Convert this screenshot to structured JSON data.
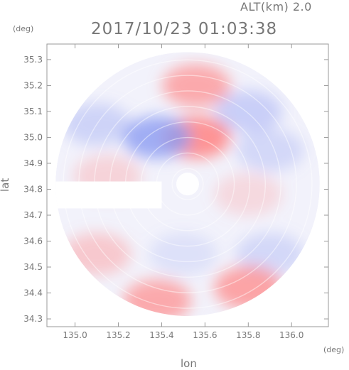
{
  "header": {
    "altitude_label": "ALT(km) 2.0",
    "timestamp": "2017/10/23 01:03:38"
  },
  "units": {
    "y_unit": "(deg)",
    "x_unit": "(deg)"
  },
  "chart_data": {
    "type": "heatmap",
    "title": "2017/10/23 01:03:38",
    "subtitle": "ALT(km) 2.0",
    "xlabel": "lon",
    "ylabel": "lat",
    "xlim": [
      134.87,
      136.17
    ],
    "ylim": [
      34.27,
      35.36
    ],
    "x_ticks": [
      "135.0",
      "135.2",
      "135.4",
      "135.6",
      "135.8",
      "136.0"
    ],
    "x_tick_values": [
      135.0,
      135.2,
      135.4,
      135.6,
      135.8,
      136.0
    ],
    "y_ticks": [
      "35.3",
      "35.2",
      "35.1",
      "35.0",
      "34.9",
      "34.8",
      "34.7",
      "34.6",
      "34.5",
      "34.4",
      "34.3"
    ],
    "y_tick_values": [
      35.3,
      35.2,
      35.1,
      35.0,
      34.9,
      34.8,
      34.7,
      34.6,
      34.5,
      34.4,
      34.3
    ],
    "radar_center": [
      135.52,
      34.82
    ],
    "radar_radius_deg": 0.5,
    "colors": {
      "positive": "#ff8a8a",
      "negative": "#8c9cf2",
      "neutral": "#f2f2fb"
    },
    "regions": [
      {
        "lon": 135.56,
        "lat": 35.2,
        "value": 0.7
      },
      {
        "lon": 135.56,
        "lat": 35.0,
        "value": 0.9
      },
      {
        "lon": 135.8,
        "lat": 35.1,
        "value": -0.4
      },
      {
        "lon": 135.38,
        "lat": 35.0,
        "value": -0.8
      },
      {
        "lon": 135.1,
        "lat": 35.05,
        "value": -0.35
      },
      {
        "lon": 135.9,
        "lat": 34.95,
        "value": -0.3
      },
      {
        "lon": 135.15,
        "lat": 34.85,
        "value": 0.3
      },
      {
        "lon": 135.8,
        "lat": 34.78,
        "value": 0.25
      },
      {
        "lon": 135.1,
        "lat": 34.55,
        "value": 0.4
      },
      {
        "lon": 135.9,
        "lat": 34.55,
        "value": -0.3
      },
      {
        "lon": 135.8,
        "lat": 34.42,
        "value": 0.75
      },
      {
        "lon": 135.38,
        "lat": 34.37,
        "value": 0.7
      },
      {
        "lon": 135.5,
        "lat": 34.55,
        "value": -0.2
      }
    ]
  }
}
